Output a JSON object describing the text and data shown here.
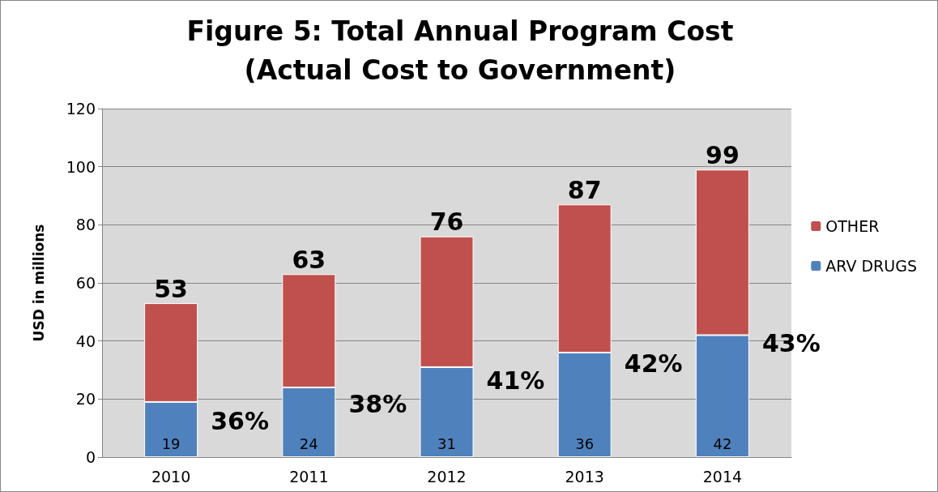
{
  "chart_data": {
    "type": "bar",
    "title": "Figure 5: Total Annual Program Cost\n(Actual Cost to Government)",
    "ylabel": "USD in millions",
    "categories": [
      "2010",
      "2011",
      "2012",
      "2013",
      "2014"
    ],
    "stacked": true,
    "series": [
      {
        "name": "ARV DRUGS",
        "color": "#4f81bd",
        "values": [
          19,
          24,
          31,
          36,
          42
        ],
        "value_labels": [
          "19",
          "24",
          "31",
          "36",
          "42"
        ]
      },
      {
        "name": "OTHER",
        "color": "#c0504d",
        "values": [
          34,
          39,
          45,
          51,
          57
        ]
      }
    ],
    "totals": [
      "53",
      "63",
      "76",
      "87",
      "99"
    ],
    "annotations": [
      "36%",
      "38%",
      "41%",
      "42%",
      "43%"
    ],
    "ylim": [
      0,
      120
    ],
    "yticks": [
      0,
      20,
      40,
      60,
      80,
      100,
      120
    ],
    "grid": "y",
    "legend": "right"
  }
}
